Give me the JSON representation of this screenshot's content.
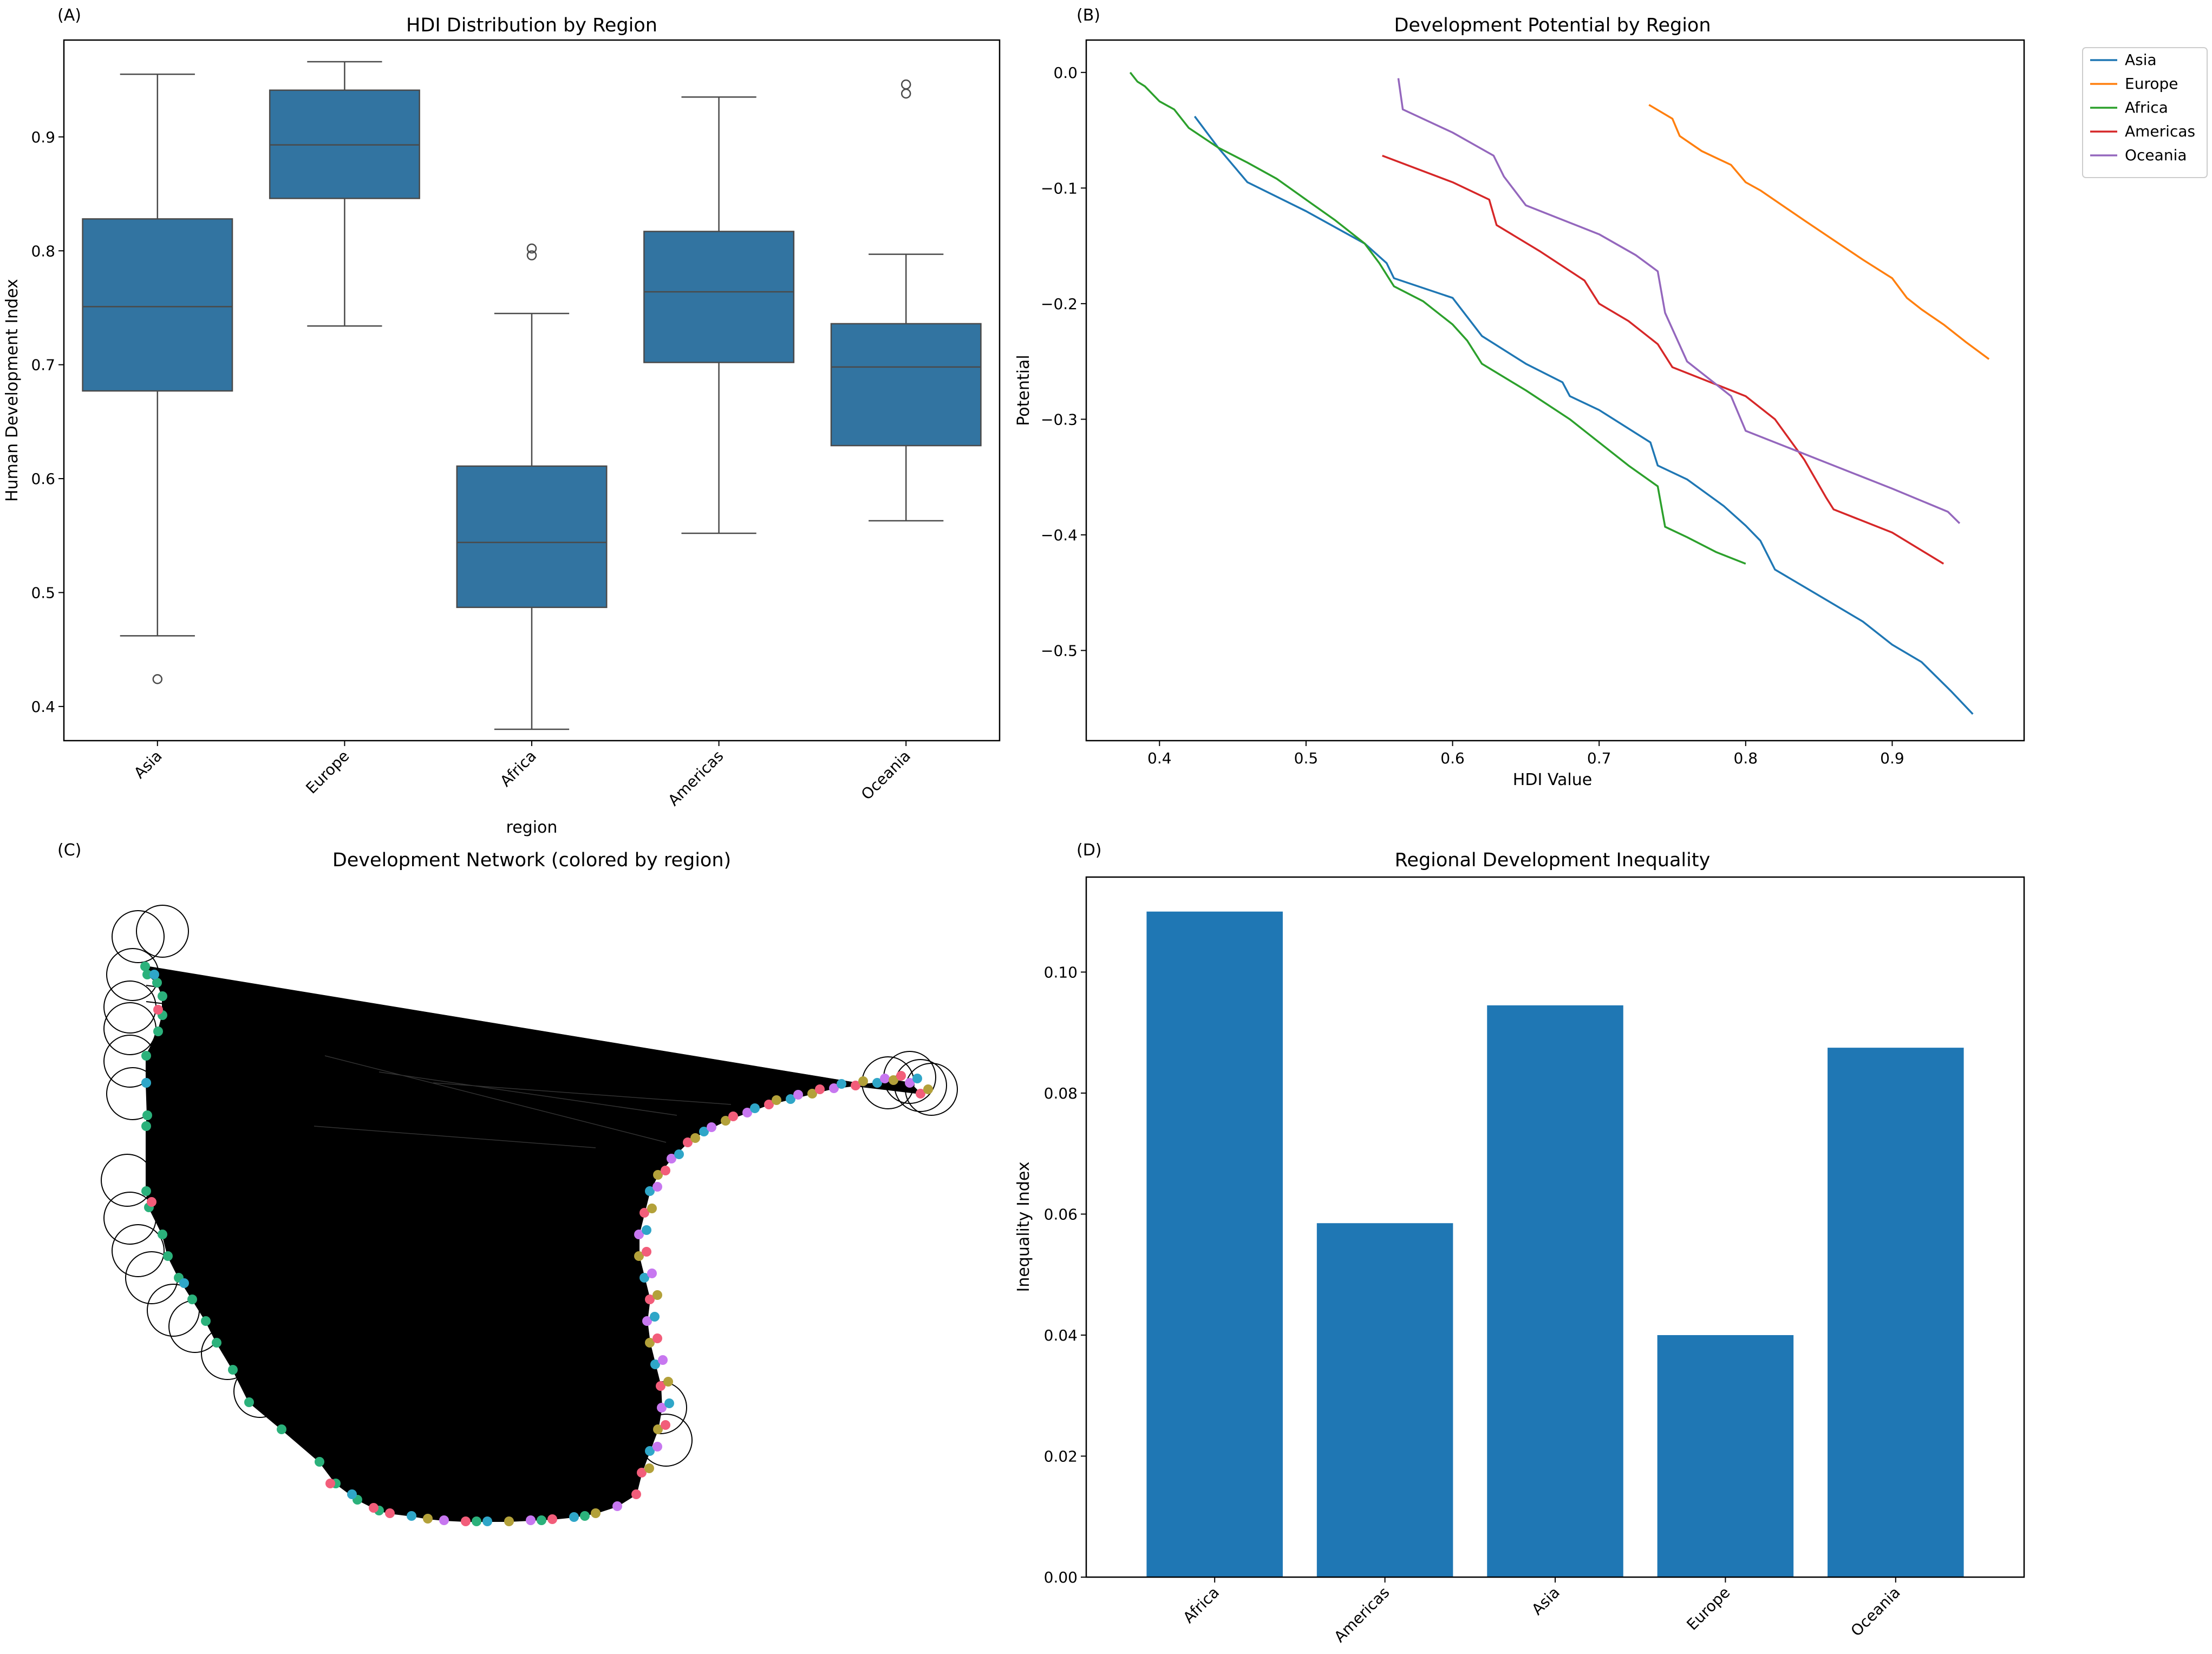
{
  "colors": {
    "box": "#3274a1",
    "bar": "#1f77b4",
    "asia": "#1f77b4",
    "europe": "#ff7f0e",
    "africa": "#2ca02c",
    "americas": "#d62728",
    "oceania": "#9467bd",
    "net_green": "#2bb17b",
    "net_pink": "#f25d7a",
    "net_blue": "#2fa6c8",
    "net_olive": "#b3a13a",
    "net_purple": "#c777f0"
  },
  "panel_labels": {
    "a": "(A)",
    "b": "(B)",
    "c": "(C)",
    "d": "(D)"
  },
  "chart_data": [
    {
      "id": "A",
      "type": "box",
      "title": "HDI Distribution by Region",
      "xlabel": "region",
      "ylabel": "Human Development Index",
      "ylim": [
        0.37,
        0.985
      ],
      "yticks": [
        0.4,
        0.5,
        0.6,
        0.7,
        0.8,
        0.9
      ],
      "ytick_labels": [
        "0.4",
        "0.5",
        "0.6",
        "0.7",
        "0.8",
        "0.9"
      ],
      "categories": [
        "Asia",
        "Europe",
        "Africa",
        "Americas",
        "Oceania"
      ],
      "boxes": [
        {
          "whislo": 0.462,
          "q1": 0.677,
          "med": 0.751,
          "q3": 0.828,
          "whishi": 0.955,
          "fliers": [
            0.424
          ]
        },
        {
          "whislo": 0.734,
          "q1": 0.846,
          "med": 0.893,
          "q3": 0.941,
          "whishi": 0.966,
          "fliers": []
        },
        {
          "whislo": 0.38,
          "q1": 0.487,
          "med": 0.544,
          "q3": 0.611,
          "whishi": 0.745,
          "fliers": [
            0.796,
            0.802
          ]
        },
        {
          "whislo": 0.552,
          "q1": 0.702,
          "med": 0.764,
          "q3": 0.817,
          "whishi": 0.935,
          "fliers": []
        },
        {
          "whislo": 0.563,
          "q1": 0.629,
          "med": 0.698,
          "q3": 0.736,
          "whishi": 0.797,
          "fliers": [
            0.938,
            0.946
          ]
        }
      ]
    },
    {
      "id": "B",
      "type": "line",
      "title": "Development Potential by Region",
      "xlabel": "HDI Value",
      "ylabel": "Potential",
      "xlim": [
        0.35,
        0.99
      ],
      "ylim": [
        -0.578,
        0.028
      ],
      "xticks": [
        0.4,
        0.5,
        0.6,
        0.7,
        0.8,
        0.9
      ],
      "xtick_labels": [
        "0.4",
        "0.5",
        "0.6",
        "0.7",
        "0.8",
        "0.9"
      ],
      "yticks": [
        0.0,
        -0.1,
        -0.2,
        -0.3,
        -0.4,
        -0.5
      ],
      "ytick_labels": [
        "0.0",
        "−0.1",
        "−0.2",
        "−0.3",
        "−0.4",
        "−0.5"
      ],
      "legend_position": "outside-top-right",
      "series": [
        {
          "name": "Asia",
          "color_key": "asia",
          "x": [
            0.424,
            0.44,
            0.46,
            0.5,
            0.54,
            0.555,
            0.56,
            0.6,
            0.62,
            0.65,
            0.675,
            0.68,
            0.7,
            0.735,
            0.74,
            0.76,
            0.785,
            0.8,
            0.81,
            0.82,
            0.84,
            0.86,
            0.88,
            0.9,
            0.92,
            0.94,
            0.955
          ],
          "y": [
            -0.038,
            -0.065,
            -0.095,
            -0.12,
            -0.148,
            -0.165,
            -0.178,
            -0.195,
            -0.228,
            -0.252,
            -0.268,
            -0.28,
            -0.292,
            -0.32,
            -0.34,
            -0.352,
            -0.375,
            -0.392,
            -0.405,
            -0.43,
            -0.445,
            -0.46,
            -0.475,
            -0.495,
            -0.51,
            -0.535,
            -0.555
          ]
        },
        {
          "name": "Europe",
          "color_key": "europe",
          "x": [
            0.734,
            0.75,
            0.755,
            0.77,
            0.79,
            0.8,
            0.81,
            0.84,
            0.86,
            0.88,
            0.9,
            0.91,
            0.92,
            0.935,
            0.95,
            0.966
          ],
          "y": [
            -0.028,
            -0.04,
            -0.055,
            -0.068,
            -0.08,
            -0.095,
            -0.102,
            -0.128,
            -0.145,
            -0.162,
            -0.178,
            -0.195,
            -0.205,
            -0.218,
            -0.233,
            -0.248
          ]
        },
        {
          "name": "Africa",
          "color_key": "africa",
          "x": [
            0.38,
            0.385,
            0.39,
            0.4,
            0.41,
            0.42,
            0.44,
            0.46,
            0.48,
            0.5,
            0.52,
            0.54,
            0.55,
            0.56,
            0.58,
            0.6,
            0.61,
            0.62,
            0.65,
            0.68,
            0.7,
            0.72,
            0.74,
            0.745,
            0.76,
            0.78,
            0.8
          ],
          "y": [
            0.0,
            -0.008,
            -0.012,
            -0.025,
            -0.032,
            -0.048,
            -0.065,
            -0.078,
            -0.092,
            -0.11,
            -0.128,
            -0.148,
            -0.165,
            -0.185,
            -0.198,
            -0.218,
            -0.232,
            -0.252,
            -0.275,
            -0.3,
            -0.32,
            -0.34,
            -0.358,
            -0.393,
            -0.402,
            -0.415,
            -0.425
          ]
        },
        {
          "name": "Americas",
          "color_key": "americas",
          "x": [
            0.552,
            0.6,
            0.625,
            0.63,
            0.66,
            0.69,
            0.7,
            0.72,
            0.74,
            0.75,
            0.8,
            0.82,
            0.84,
            0.855,
            0.86,
            0.9,
            0.935
          ],
          "y": [
            -0.072,
            -0.095,
            -0.11,
            -0.132,
            -0.155,
            -0.18,
            -0.2,
            -0.215,
            -0.235,
            -0.255,
            -0.28,
            -0.3,
            -0.335,
            -0.368,
            -0.378,
            -0.398,
            -0.425
          ]
        },
        {
          "name": "Oceania",
          "color_key": "oceania",
          "x": [
            0.563,
            0.566,
            0.6,
            0.628,
            0.635,
            0.65,
            0.68,
            0.7,
            0.725,
            0.74,
            0.745,
            0.76,
            0.79,
            0.8,
            0.85,
            0.9,
            0.938,
            0.946
          ],
          "y": [
            -0.005,
            -0.032,
            -0.052,
            -0.072,
            -0.09,
            -0.115,
            -0.13,
            -0.14,
            -0.158,
            -0.172,
            -0.208,
            -0.25,
            -0.28,
            -0.31,
            -0.335,
            -0.36,
            -0.38,
            -0.39
          ]
        }
      ]
    },
    {
      "id": "C",
      "type": "network",
      "title": "Development Network (colored by region)"
    },
    {
      "id": "D",
      "type": "bar",
      "title": "Regional Development Inequality",
      "xlabel": "",
      "ylabel": "Inequality Index",
      "ylim": [
        0,
        0.1157
      ],
      "yticks": [
        0.0,
        0.02,
        0.04,
        0.06,
        0.08,
        0.1
      ],
      "ytick_labels": [
        "0.00",
        "0.02",
        "0.04",
        "0.06",
        "0.08",
        "0.10"
      ],
      "categories": [
        "Africa",
        "Americas",
        "Asia",
        "Europe",
        "Oceania"
      ],
      "values": [
        0.11,
        0.0585,
        0.0945,
        0.04,
        0.0875
      ]
    }
  ]
}
